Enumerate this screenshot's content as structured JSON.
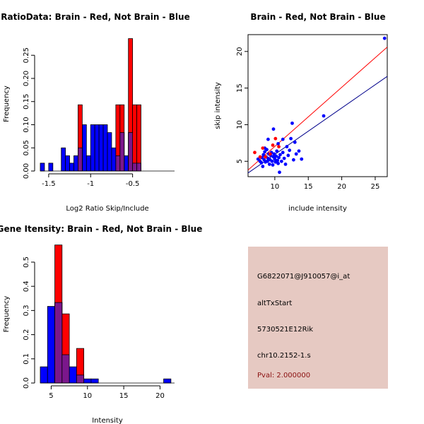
{
  "chart_data": [
    {
      "type": "bar",
      "title": "RatioData: Brain - Red, Not Brain - Blue",
      "xlabel": "Log2 Ratio Skip/Include",
      "ylabel": "Frequency",
      "xlim": [
        -1.6,
        0.0
      ],
      "ylim": [
        0,
        0.29
      ],
      "xticks": [
        -1.5,
        -1.0,
        -0.5
      ],
      "yticks": [
        0.0,
        0.05,
        0.1,
        0.15,
        0.2,
        0.25
      ],
      "bin_width": 0.05,
      "series": [
        {
          "name": "Not Brain",
          "color": "#0000ff",
          "bins": [
            {
              "x": -1.6,
              "y": 0.017
            },
            {
              "x": -1.55,
              "y": 0
            },
            {
              "x": -1.5,
              "y": 0.017
            },
            {
              "x": -1.45,
              "y": 0
            },
            {
              "x": -1.4,
              "y": 0
            },
            {
              "x": -1.35,
              "y": 0.05
            },
            {
              "x": -1.3,
              "y": 0.033
            },
            {
              "x": -1.25,
              "y": 0.017
            },
            {
              "x": -1.2,
              "y": 0.033
            },
            {
              "x": -1.15,
              "y": 0.05
            },
            {
              "x": -1.1,
              "y": 0.1
            },
            {
              "x": -1.05,
              "y": 0.033
            },
            {
              "x": -1.0,
              "y": 0.1
            },
            {
              "x": -0.95,
              "y": 0.1
            },
            {
              "x": -0.9,
              "y": 0.1
            },
            {
              "x": -0.85,
              "y": 0.1
            },
            {
              "x": -0.8,
              "y": 0.083
            },
            {
              "x": -0.75,
              "y": 0.05
            },
            {
              "x": -0.7,
              "y": 0.033
            },
            {
              "x": -0.65,
              "y": 0.083
            },
            {
              "x": -0.6,
              "y": 0.033
            },
            {
              "x": -0.55,
              "y": 0.083
            },
            {
              "x": -0.5,
              "y": 0.017
            },
            {
              "x": -0.45,
              "y": 0.017
            }
          ]
        },
        {
          "name": "Brain",
          "color": "#ff0000",
          "bins": [
            {
              "x": -1.15,
              "y": 0.143
            },
            {
              "x": -0.7,
              "y": 0.143
            },
            {
              "x": -0.65,
              "y": 0.143
            },
            {
              "x": -0.55,
              "y": 0.286
            },
            {
              "x": -0.5,
              "y": 0.143
            },
            {
              "x": -0.45,
              "y": 0.143
            }
          ]
        }
      ]
    },
    {
      "type": "scatter",
      "title": "Brain - Red, Not Brain - Blue",
      "xlabel": "include intensity",
      "ylabel": "skip intensity",
      "xlim": [
        6.0,
        26.8
      ],
      "ylim": [
        2.9,
        22.3
      ],
      "xticks": [
        10,
        15,
        20,
        25
      ],
      "yticks": [
        5,
        10,
        15,
        20
      ],
      "series": [
        {
          "name": "Not Brain",
          "color": "#0000ff",
          "points": [
            [
              7.5,
              5.3
            ],
            [
              7.8,
              5.0
            ],
            [
              8.0,
              4.8
            ],
            [
              8.1,
              5.5
            ],
            [
              8.2,
              4.3
            ],
            [
              8.3,
              5.9
            ],
            [
              8.4,
              5.2
            ],
            [
              8.5,
              6.3
            ],
            [
              8.6,
              4.9
            ],
            [
              8.7,
              5.6
            ],
            [
              8.8,
              6.6
            ],
            [
              8.9,
              5.0
            ],
            [
              9.0,
              5.4
            ],
            [
              9.1,
              6.0
            ],
            [
              9.2,
              4.6
            ],
            [
              9.3,
              5.2
            ],
            [
              9.4,
              5.8
            ],
            [
              9.5,
              6.2
            ],
            [
              9.6,
              5.0
            ],
            [
              9.7,
              4.5
            ],
            [
              9.8,
              5.6
            ],
            [
              9.9,
              6.0
            ],
            [
              10.0,
              5.3
            ],
            [
              10.1,
              4.9
            ],
            [
              10.2,
              5.7
            ],
            [
              10.3,
              6.4
            ],
            [
              10.4,
              5.1
            ],
            [
              10.5,
              4.7
            ],
            [
              10.6,
              5.5
            ],
            [
              10.7,
              3.5
            ],
            [
              10.8,
              5.9
            ],
            [
              11.0,
              5.0
            ],
            [
              11.2,
              6.2
            ],
            [
              11.4,
              5.4
            ],
            [
              11.6,
              4.6
            ],
            [
              11.8,
              7.0
            ],
            [
              12.0,
              5.8
            ],
            [
              12.2,
              6.5
            ],
            [
              12.4,
              8.1
            ],
            [
              12.6,
              10.2
            ],
            [
              12.8,
              5.2
            ],
            [
              13.0,
              7.6
            ],
            [
              13.2,
              6.0
            ],
            [
              13.6,
              6.4
            ],
            [
              14.0,
              5.3
            ],
            [
              9.0,
              8.0
            ],
            [
              8.5,
              6.8
            ],
            [
              9.8,
              9.4
            ],
            [
              10.5,
              7.4
            ],
            [
              11.2,
              8.0
            ],
            [
              17.3,
              11.2
            ],
            [
              26.4,
              21.8
            ]
          ]
        },
        {
          "name": "Brain",
          "color": "#ff0000",
          "points": [
            [
              7.0,
              6.2
            ],
            [
              7.8,
              5.6
            ],
            [
              8.2,
              6.8
            ],
            [
              8.6,
              5.6
            ],
            [
              9.3,
              6.0
            ],
            [
              9.7,
              7.2
            ],
            [
              10.1,
              8.1
            ],
            [
              10.6,
              7.0
            ]
          ]
        }
      ],
      "fit_lines": [
        {
          "name": "Brain fit",
          "color": "#ff0000",
          "from": [
            6.0,
            3.8
          ],
          "to": [
            26.8,
            20.6
          ]
        },
        {
          "name": "Not Brain fit",
          "color": "#00008b",
          "from": [
            6.0,
            3.4
          ],
          "to": [
            26.8,
            16.6
          ]
        }
      ]
    },
    {
      "type": "bar",
      "title": "Gene Itensity: Brain - Red, Not Brain - Blue",
      "xlabel": "Intensity",
      "ylabel": "Frequency",
      "xlim": [
        3.5,
        22.0
      ],
      "ylim": [
        0,
        0.57
      ],
      "xticks": [
        5,
        10,
        15,
        20
      ],
      "yticks": [
        0.0,
        0.1,
        0.2,
        0.3,
        0.4,
        0.5
      ],
      "bin_width": 1,
      "series": [
        {
          "name": "Not Brain",
          "color": "#0000ff",
          "bins": [
            {
              "x": 3.5,
              "y": 0.067
            },
            {
              "x": 4.5,
              "y": 0.317
            },
            {
              "x": 5.5,
              "y": 0.333
            },
            {
              "x": 6.5,
              "y": 0.117
            },
            {
              "x": 7.5,
              "y": 0.067
            },
            {
              "x": 8.5,
              "y": 0.033
            },
            {
              "x": 9.5,
              "y": 0.017
            },
            {
              "x": 10.5,
              "y": 0.017
            },
            {
              "x": 11.5,
              "y": 0
            },
            {
              "x": 12.5,
              "y": 0
            },
            {
              "x": 13.5,
              "y": 0
            },
            {
              "x": 14.5,
              "y": 0
            },
            {
              "x": 15.5,
              "y": 0
            },
            {
              "x": 16.5,
              "y": 0
            },
            {
              "x": 17.5,
              "y": 0
            },
            {
              "x": 18.5,
              "y": 0
            },
            {
              "x": 19.5,
              "y": 0
            },
            {
              "x": 20.5,
              "y": 0.017
            }
          ]
        },
        {
          "name": "Brain",
          "color": "#ff0000",
          "bins": [
            {
              "x": 5.5,
              "y": 0.571
            },
            {
              "x": 6.5,
              "y": 0.286
            },
            {
              "x": 8.5,
              "y": 0.143
            }
          ]
        }
      ]
    }
  ],
  "info_panel": {
    "probe": "G6822071@J910057@i_at",
    "event_type": "altTxStart",
    "gene": "5730521E12Rik",
    "location": "chr10.2152-1.s",
    "pval": "Pval: 2.000000",
    "background": "#e6c9c2",
    "pval_color": "#8b1010"
  }
}
